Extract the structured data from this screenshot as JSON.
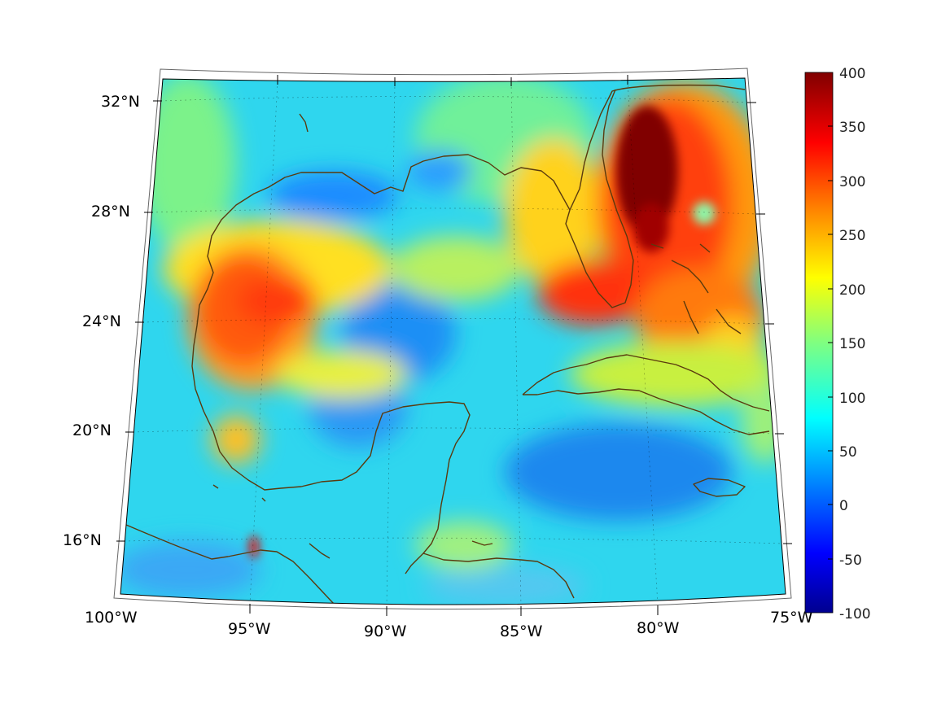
{
  "map": {
    "projection": "conic",
    "variable_description": "",
    "lon_labels": [
      "100°W",
      "95°W",
      "90°W",
      "85°W",
      "80°W",
      "75°W"
    ],
    "lat_labels": [
      "32°N",
      "28°N",
      "24°N",
      "20°N",
      "16°N"
    ],
    "regions_shown": [
      "Gulf of Mexico",
      "Florida",
      "Cuba",
      "Yucatan",
      "Bahamas",
      "Jamaica",
      "Central America"
    ]
  },
  "colorbar": {
    "labels": [
      "400",
      "350",
      "300",
      "250",
      "200",
      "150",
      "100",
      "50",
      "0",
      "-50",
      "-100"
    ],
    "min": -100,
    "max": 400,
    "colormap": "jet",
    "colors": [
      "#00008f",
      "#0000ff",
      "#0080ff",
      "#00ffff",
      "#80ff80",
      "#ffff00",
      "#ff8000",
      "#ff0000",
      "#800000"
    ]
  },
  "colors": {
    "coastline": "#5a3a0e",
    "background_field": "#2fd6ee",
    "hotspot": "#800000"
  }
}
